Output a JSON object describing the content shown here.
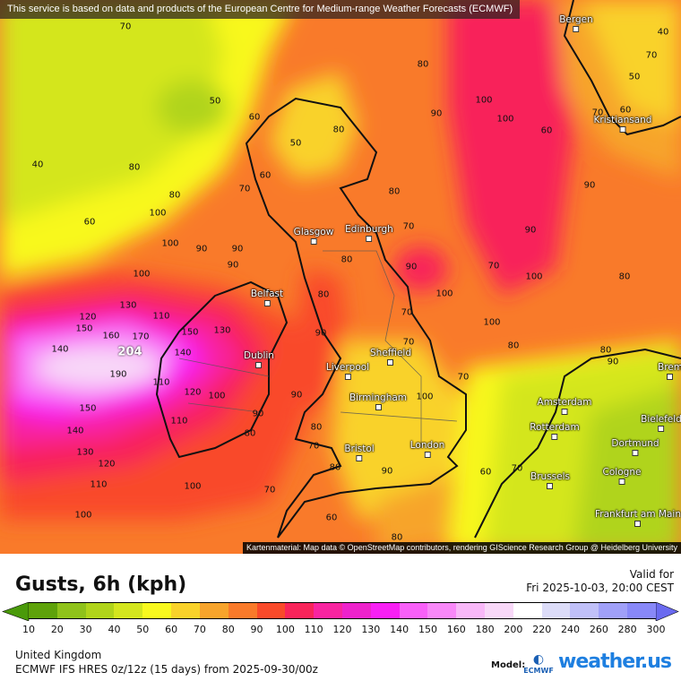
{
  "banner": "This service is based on data and products of the European Centre for Medium-range Weather Forecasts (ECMWF)",
  "attribution": "Kartenmaterial: Map data © OpenStreetMap contributors, rendering GIScience Research Group @ Heidelberg University",
  "legend": {
    "title": "Gusts, 6h (kph)",
    "valid_label": "Valid for",
    "valid_time": "Fri 2025-10-03, 20:00 CEST",
    "ticks": [
      "10",
      "20",
      "30",
      "40",
      "50",
      "60",
      "70",
      "80",
      "90",
      "100",
      "110",
      "120",
      "130",
      "140",
      "150",
      "160",
      "180",
      "200",
      "220",
      "240",
      "260",
      "280",
      "300"
    ],
    "colors": [
      "#5ea20a",
      "#8fc21a",
      "#b0d41a",
      "#d4e61e",
      "#f8f81e",
      "#f9d22a",
      "#f7a42c",
      "#f97a2a",
      "#f94a2a",
      "#f8245a",
      "#f824a0",
      "#ee22cc",
      "#f820f4",
      "#f860f8",
      "#f888f8",
      "#f8b8f8",
      "#f8d8f8",
      "#ffffff",
      "#dcdcf8",
      "#c0c0f8",
      "#a0a0f8",
      "#8888f8"
    ],
    "under_color": "#4a9a0a",
    "over_color": "#6a6af0"
  },
  "footer": {
    "region": "United Kingdom",
    "model_run": "ECMWF IFS HRES 0z/12z (15 days) from  2025-09-30/00z",
    "model_label": "Model:",
    "ecmwf_logo": "ECMWF",
    "brand": "weather.us"
  },
  "cities": [
    "Bergen",
    "Kristiansand",
    "Glasgow",
    "Edinburgh",
    "Belfast",
    "Dublin",
    "Liverpool",
    "Sheffield",
    "Birmingham",
    "Bristol",
    "London",
    "Amsterdam",
    "Rotterdam",
    "Brussels",
    "Bielefeld",
    "Dortmund",
    "Cologne",
    "Frankfurt am Main",
    "Brem"
  ],
  "max_value": "204",
  "contour_labels": [
    "70",
    "50",
    "40",
    "60",
    "80",
    "60",
    "50",
    "60",
    "70",
    "80",
    "90",
    "80",
    "100",
    "90",
    "100",
    "120",
    "130",
    "150",
    "140",
    "160",
    "170",
    "190",
    "150",
    "140",
    "130",
    "120",
    "110",
    "100",
    "100",
    "110",
    "150",
    "130",
    "140",
    "110",
    "120",
    "110",
    "100",
    "90",
    "80",
    "70",
    "80",
    "90",
    "100",
    "90",
    "80",
    "90",
    "100",
    "100",
    "90",
    "80",
    "100",
    "90",
    "70",
    "80",
    "70",
    "60",
    "60",
    "70",
    "50",
    "40",
    "70",
    "70",
    "70",
    "80",
    "90",
    "80",
    "70",
    "60",
    "100",
    "100",
    "80",
    "60",
    "70",
    "80",
    "90",
    "90",
    "100",
    "90",
    "80",
    "80",
    "70"
  ]
}
